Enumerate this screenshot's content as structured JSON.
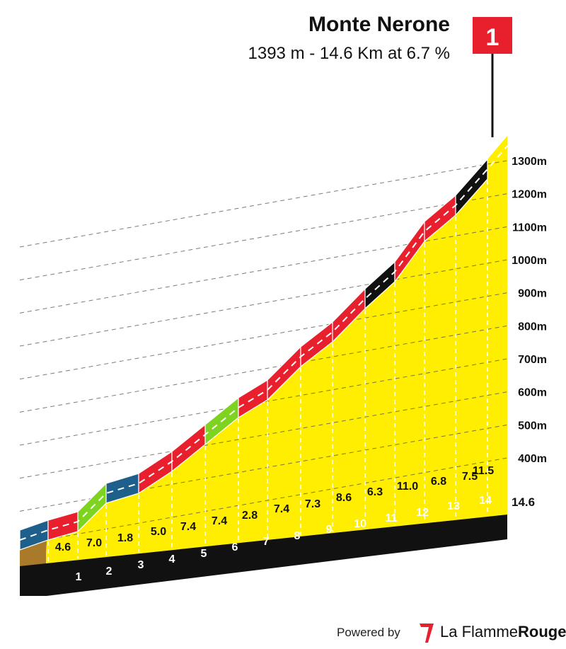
{
  "header": {
    "title": "Monte Nerone",
    "subtitle": "1393 m - 14.6 Km at 6.7 %"
  },
  "footer": {
    "powered_by": "Powered by",
    "brand_plain": "La Flamme",
    "brand_bold": "Rouge"
  },
  "summit_flag": {
    "label": "1",
    "color": "#e8202e"
  },
  "colors": {
    "fill": "#ffee00",
    "side": "#111111",
    "start_block": "#a87a2a",
    "gradient_bands": {
      "green": "#7ed321",
      "blue": "#1f5f8b",
      "red": "#e8202e",
      "black": "#111111"
    }
  },
  "chart_data": {
    "type": "area",
    "title": "Monte Nerone",
    "subtitle": "1393 m - 14.6 Km at 6.7 %",
    "x_unit": "km",
    "y_unit": "m",
    "ylim": [
      400,
      1393
    ],
    "y_ticks": [
      "400m",
      "500m",
      "600m",
      "700m",
      "800m",
      "900m",
      "1000m",
      "1100m",
      "1200m",
      "1300m"
    ],
    "km_markers": [
      "1",
      "2",
      "3",
      "4",
      "5",
      "6",
      "7",
      "8",
      "9",
      "10",
      "11",
      "12",
      "13",
      "14"
    ],
    "end_label": "14.6",
    "segments": [
      {
        "km": 1,
        "gradient": "4.6",
        "band": "blue"
      },
      {
        "km": 2,
        "gradient": "7.0",
        "band": "red"
      },
      {
        "km": 3,
        "gradient": "1.8",
        "band": "green"
      },
      {
        "km": 4,
        "gradient": "5.0",
        "band": "blue"
      },
      {
        "km": 5,
        "gradient": "7.4",
        "band": "red"
      },
      {
        "km": 6,
        "gradient": "7.4",
        "band": "red"
      },
      {
        "km": 7,
        "gradient": "2.8",
        "band": "green"
      },
      {
        "km": 8,
        "gradient": "7.4",
        "band": "red"
      },
      {
        "km": 9,
        "gradient": "7.3",
        "band": "red"
      },
      {
        "km": 10,
        "gradient": "8.6",
        "band": "red"
      },
      {
        "km": 11,
        "gradient": "6.3",
        "band": "red"
      },
      {
        "km": 12,
        "gradient": "11.0",
        "band": "black"
      },
      {
        "km": 13,
        "gradient": "6.8",
        "band": "red"
      },
      {
        "km": 14,
        "gradient": "7.5",
        "band": "red"
      },
      {
        "km": 14.6,
        "gradient": "11.5",
        "band": "black"
      }
    ],
    "grid": true,
    "legend": "none"
  }
}
